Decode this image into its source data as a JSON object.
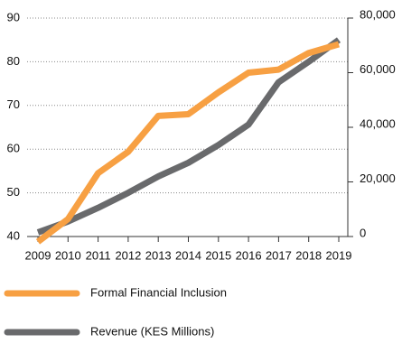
{
  "chart_data": {
    "type": "line",
    "categories": [
      "2009",
      "2010",
      "2011",
      "2012",
      "2013",
      "2014",
      "2015",
      "2016",
      "2017",
      "2018",
      "2019"
    ],
    "series": [
      {
        "name": "Formal Financial Inclusion",
        "color": "#f7a043",
        "values": [
          38.8,
          44,
          54.5,
          59.4,
          67.6,
          68,
          73,
          77.5,
          78.2,
          82,
          84
        ]
      },
      {
        "name": "Revenue (KES Millions)",
        "color": "#696a6c",
        "axis": "y2",
        "values": [
          1500,
          5500,
          10500,
          16000,
          22000,
          27000,
          33500,
          41000,
          56500,
          64000,
          72000
        ]
      }
    ],
    "ylim": [
      40,
      90
    ],
    "yticks": [
      40,
      50,
      60,
      70,
      80,
      90
    ],
    "y2lim": [
      0,
      80000
    ],
    "y2ticks": [
      0,
      {
        "value": 20000,
        "label": "20,000"
      },
      {
        "value": 40000,
        "label": "40,000"
      },
      {
        "value": 60000,
        "label": "60,000"
      },
      {
        "value": 80000,
        "label": "80,000"
      }
    ],
    "grid": true
  }
}
